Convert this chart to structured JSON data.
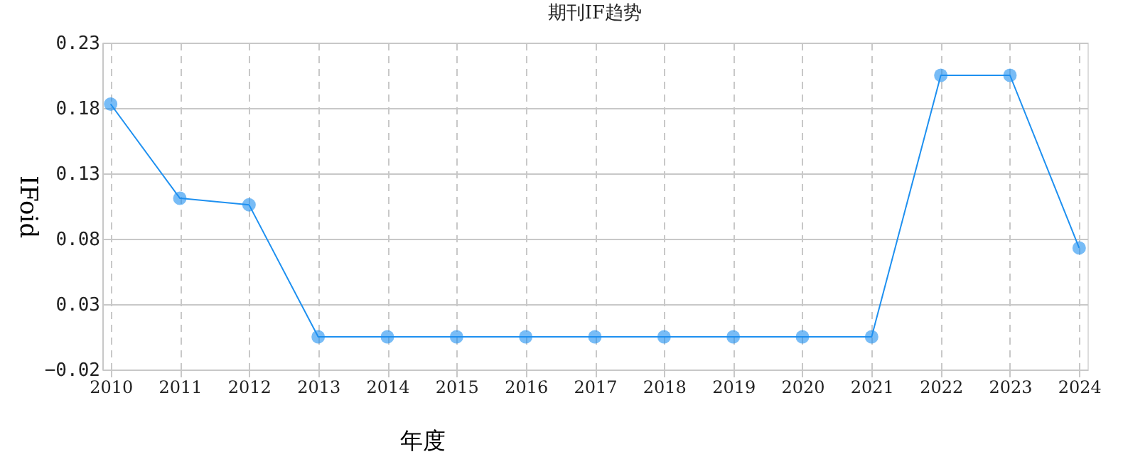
{
  "chart_data": {
    "type": "line",
    "title": "期刊IF趋势",
    "xlabel": "年度",
    "ylabel": "IFoid",
    "categories": [
      "2010",
      "2011",
      "2012",
      "2013",
      "2014",
      "2015",
      "2016",
      "2017",
      "2018",
      "2019",
      "2020",
      "2021",
      "2022",
      "2023",
      "2024"
    ],
    "series": [
      {
        "color": "#1e90f0",
        "values": [
          0.183,
          0.111,
          0.106,
          0.005,
          0.005,
          0.005,
          0.005,
          0.005,
          0.005,
          0.005,
          0.005,
          0.005,
          0.205,
          0.205,
          0.073
        ]
      }
    ],
    "ylim": [
      -0.02,
      0.23
    ],
    "yticks": [
      -0.02,
      0.03,
      0.08,
      0.13,
      0.18,
      0.23
    ],
    "grid": true,
    "marker": "circle"
  }
}
